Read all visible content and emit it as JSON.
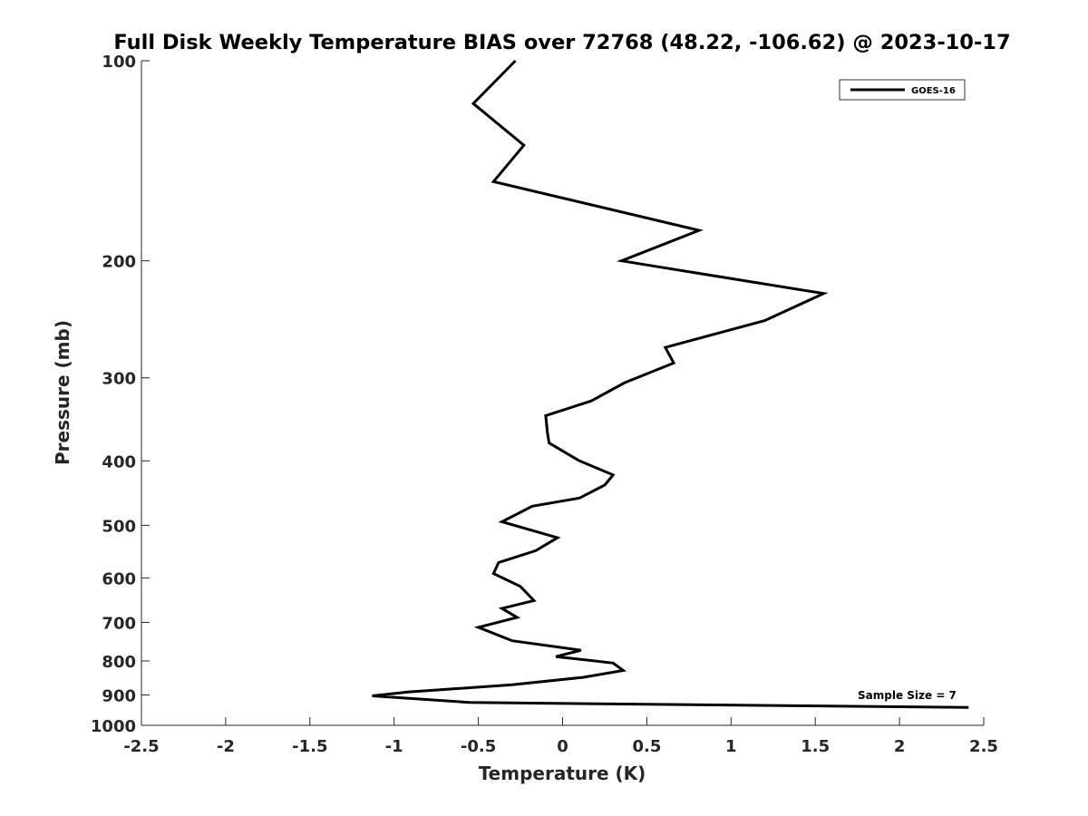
{
  "chart_data": {
    "type": "line",
    "title": "Full Disk Weekly Temperature BIAS over 72768 (48.22, -106.62) @ 2023-10-17",
    "xlabel": "Temperature (K)",
    "ylabel": "Pressure (mb)",
    "xlim": [
      -2.5,
      2.5
    ],
    "ylim": [
      100,
      1000
    ],
    "y_scale": "log",
    "y_reversed": true,
    "x_ticks": [
      "-2.5",
      "-2",
      "-1.5",
      "-1",
      "-0.5",
      "0",
      "0.5",
      "1",
      "1.5",
      "2",
      "2.5"
    ],
    "x_tick_values": [
      -2.5,
      -2,
      -1.5,
      -1,
      -0.5,
      0,
      0.5,
      1,
      1.5,
      2,
      2.5
    ],
    "y_ticks": [
      "100",
      "200",
      "300",
      "400",
      "500",
      "600",
      "700",
      "800",
      "900",
      "1000"
    ],
    "y_tick_values": [
      100,
      200,
      300,
      400,
      500,
      600,
      700,
      800,
      900,
      1000
    ],
    "grid": false,
    "legend_position": "top-right",
    "annotation": "Sample Size = 7",
    "series": [
      {
        "name": "GOES-16",
        "color": "#000000",
        "x": [
          -0.28,
          -0.53,
          -0.23,
          -0.41,
          0.81,
          0.35,
          1.55,
          1.2,
          0.61,
          0.66,
          0.37,
          0.17,
          -0.1,
          -0.09,
          -0.08,
          0.1,
          0.3,
          0.25,
          0.1,
          -0.18,
          -0.36,
          -0.03,
          -0.16,
          -0.38,
          -0.41,
          -0.25,
          -0.17,
          -0.36,
          -0.27,
          -0.5,
          -0.3,
          0.11,
          -0.04,
          0.3,
          0.36,
          0.12,
          -0.3,
          -0.92,
          -1.13,
          -0.55,
          2.41
        ],
        "y": [
          100,
          116,
          134,
          152,
          180,
          200,
          224,
          246,
          270,
          285,
          305,
          325,
          342,
          363,
          376,
          400,
          420,
          435,
          455,
          468,
          494,
          522,
          546,
          569,
          591,
          618,
          649,
          667,
          688,
          712,
          746,
          771,
          788,
          806,
          827,
          847,
          869,
          891,
          903,
          924,
          940
        ]
      }
    ]
  }
}
